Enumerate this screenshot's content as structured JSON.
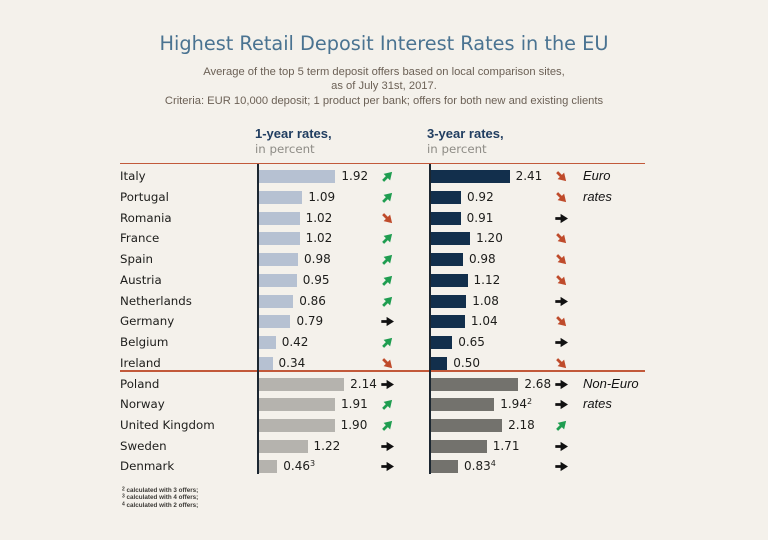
{
  "page": {
    "title": "Highest Retail Deposit Interest Rates in the EU",
    "subtitle_line1": "Average of the top 5 term deposit offers based on local comparison sites,",
    "subtitle_line2": "as of July 31st, 2017.",
    "subtitle_line3": "Criteria: EUR 10,000 deposit; 1 product per bank; offers for both new and existing clients"
  },
  "columns": [
    {
      "label": "1-year rates,",
      "sublabel": "in percent"
    },
    {
      "label": "3-year rates,",
      "sublabel": "in percent"
    }
  ],
  "groups": [
    {
      "name": "Euro rates",
      "label_lines": [
        "Euro",
        "rates"
      ],
      "rows": [
        {
          "country": "Italy",
          "y1": {
            "value": 1.92,
            "display": "1.92",
            "sup": "",
            "trend": "up"
          },
          "y3": {
            "value": 2.41,
            "display": "2.41",
            "sup": "",
            "trend": "down"
          }
        },
        {
          "country": "Portugal",
          "y1": {
            "value": 1.09,
            "display": "1.09",
            "sup": "",
            "trend": "up"
          },
          "y3": {
            "value": 0.92,
            "display": "0.92",
            "sup": "",
            "trend": "down"
          }
        },
        {
          "country": "Romania",
          "y1": {
            "value": 1.02,
            "display": "1.02",
            "sup": "",
            "trend": "down"
          },
          "y3": {
            "value": 0.91,
            "display": "0.91",
            "sup": "",
            "trend": "flat"
          }
        },
        {
          "country": "France",
          "y1": {
            "value": 1.02,
            "display": "1.02",
            "sup": "",
            "trend": "up"
          },
          "y3": {
            "value": 1.2,
            "display": "1.20",
            "sup": "",
            "trend": "down"
          }
        },
        {
          "country": "Spain",
          "y1": {
            "value": 0.98,
            "display": "0.98",
            "sup": "",
            "trend": "up"
          },
          "y3": {
            "value": 0.98,
            "display": "0.98",
            "sup": "",
            "trend": "down"
          }
        },
        {
          "country": "Austria",
          "y1": {
            "value": 0.95,
            "display": "0.95",
            "sup": "",
            "trend": "up"
          },
          "y3": {
            "value": 1.12,
            "display": "1.12",
            "sup": "",
            "trend": "down"
          }
        },
        {
          "country": "Netherlands",
          "y1": {
            "value": 0.86,
            "display": "0.86",
            "sup": "",
            "trend": "up"
          },
          "y3": {
            "value": 1.08,
            "display": "1.08",
            "sup": "",
            "trend": "flat"
          }
        },
        {
          "country": "Germany",
          "y1": {
            "value": 0.79,
            "display": "0.79",
            "sup": "",
            "trend": "flat"
          },
          "y3": {
            "value": 1.04,
            "display": "1.04",
            "sup": "",
            "trend": "down"
          }
        },
        {
          "country": "Belgium",
          "y1": {
            "value": 0.42,
            "display": "0.42",
            "sup": "",
            "trend": "up"
          },
          "y3": {
            "value": 0.65,
            "display": "0.65",
            "sup": "",
            "trend": "flat"
          }
        },
        {
          "country": "Ireland",
          "y1": {
            "value": 0.34,
            "display": "0.34",
            "sup": "",
            "trend": "down"
          },
          "y3": {
            "value": 0.5,
            "display": "0.50",
            "sup": "",
            "trend": "down"
          }
        }
      ]
    },
    {
      "name": "Non-Euro rates",
      "label_lines": [
        "Non-Euro",
        "rates"
      ],
      "rows": [
        {
          "country": "Poland",
          "y1": {
            "value": 2.14,
            "display": "2.14",
            "sup": "",
            "trend": "flat"
          },
          "y3": {
            "value": 2.68,
            "display": "2.68",
            "sup": "",
            "trend": "flat"
          }
        },
        {
          "country": "Norway",
          "y1": {
            "value": 1.91,
            "display": "1.91",
            "sup": "",
            "trend": "up"
          },
          "y3": {
            "value": 1.94,
            "display": "1.94",
            "sup": "2",
            "trend": "flat"
          }
        },
        {
          "country": "United Kingdom",
          "y1": {
            "value": 1.9,
            "display": "1.90",
            "sup": "",
            "trend": "up"
          },
          "y3": {
            "value": 2.18,
            "display": "2.18",
            "sup": "",
            "trend": "up"
          }
        },
        {
          "country": "Sweden",
          "y1": {
            "value": 1.22,
            "display": "1.22",
            "sup": "",
            "trend": "flat"
          },
          "y3": {
            "value": 1.71,
            "display": "1.71",
            "sup": "",
            "trend": "flat"
          }
        },
        {
          "country": "Denmark",
          "y1": {
            "value": 0.46,
            "display": "0.46",
            "sup": "3",
            "trend": "flat"
          },
          "y3": {
            "value": 0.83,
            "display": "0.83",
            "sup": "4",
            "trend": "flat"
          }
        }
      ]
    }
  ],
  "footnotes": [
    {
      "marker": "2",
      "text": "calculated with 3 offers;"
    },
    {
      "marker": "3",
      "text": "calculated with 4 offers;"
    },
    {
      "marker": "4",
      "text": "calculated with 2 offers;"
    }
  ],
  "colors": {
    "background": "#f4f1eb",
    "title": "#4a7391",
    "subtitle": "#6c6156",
    "column_header": "#203d60",
    "column_subheader": "#8e8c86",
    "divider": "#c2593a",
    "axis": "#1b2630",
    "bar_euro_1y": "#b6c1d2",
    "bar_euro_3y": "#122f4c",
    "bar_noneuro_1y": "#b5b3ae",
    "bar_noneuro_3y": "#73726d",
    "trend_up": "#1f9d50",
    "trend_down": "#bf4b2b",
    "trend_flat": "#111111",
    "text": "#1d1d1b"
  },
  "chart_data": {
    "type": "bar",
    "orientation": "horizontal",
    "title": "Highest Retail Deposit Interest Rates in the EU",
    "subtitle": "Average of the top 5 term deposit offers based on local comparison sites, as of July 31st, 2017. Criteria: EUR 10,000 deposit; 1 product per bank; offers for both new and existing clients",
    "categories": [
      "Italy",
      "Portugal",
      "Romania",
      "France",
      "Spain",
      "Austria",
      "Netherlands",
      "Germany",
      "Belgium",
      "Ireland",
      "Poland",
      "Norway",
      "United Kingdom",
      "Sweden",
      "Denmark"
    ],
    "category_groups": {
      "Euro rates": [
        "Italy",
        "Portugal",
        "Romania",
        "France",
        "Spain",
        "Austria",
        "Netherlands",
        "Germany",
        "Belgium",
        "Ireland"
      ],
      "Non-Euro rates": [
        "Poland",
        "Norway",
        "United Kingdom",
        "Sweden",
        "Denmark"
      ]
    },
    "series": [
      {
        "name": "1-year rates, in percent",
        "values": [
          1.92,
          1.09,
          1.02,
          1.02,
          0.98,
          0.95,
          0.86,
          0.79,
          0.42,
          0.34,
          2.14,
          1.91,
          1.9,
          1.22,
          0.46
        ],
        "trends": [
          "up",
          "up",
          "down",
          "up",
          "up",
          "up",
          "up",
          "flat",
          "up",
          "down",
          "flat",
          "up",
          "up",
          "flat",
          "flat"
        ]
      },
      {
        "name": "3-year rates, in percent",
        "values": [
          2.41,
          0.92,
          0.91,
          1.2,
          0.98,
          1.12,
          1.08,
          1.04,
          0.65,
          0.5,
          2.68,
          1.94,
          2.18,
          1.71,
          0.83
        ],
        "trends": [
          "down",
          "down",
          "flat",
          "down",
          "down",
          "down",
          "flat",
          "down",
          "flat",
          "down",
          "flat",
          "flat",
          "up",
          "flat",
          "flat"
        ]
      }
    ],
    "value_axis_range": [
      0,
      2.8
    ],
    "grid": false,
    "legend_position": "none",
    "annotations": [
      "Euro rates",
      "Non-Euro rates",
      "2 calculated with 3 offers;",
      "3 calculated with 4 offers;",
      "4 calculated with 2 offers;"
    ]
  }
}
